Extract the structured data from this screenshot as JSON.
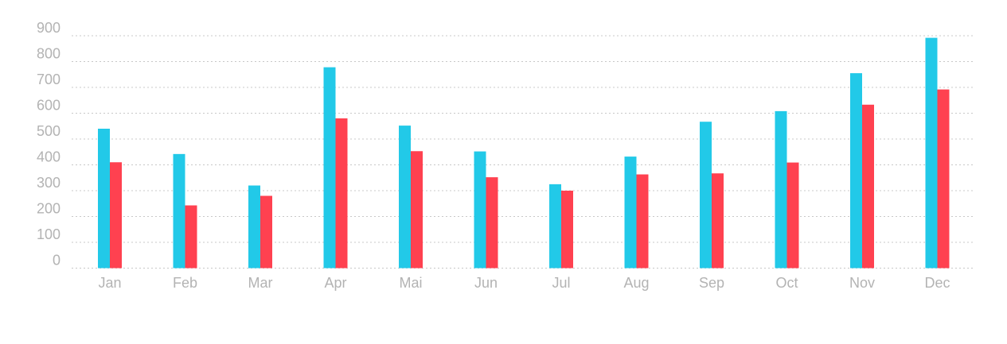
{
  "chart_data": {
    "type": "bar",
    "title": "",
    "xlabel": "",
    "ylabel": "",
    "categories": [
      "Jan",
      "Feb",
      "Mar",
      "Apr",
      "Mai",
      "Jun",
      "Jul",
      "Aug",
      "Sep",
      "Oct",
      "Nov",
      "Dec"
    ],
    "series": [
      {
        "color": "#22c9e8",
        "values": [
          540,
          442,
          320,
          778,
          552,
          452,
          325,
          432,
          567,
          608,
          755,
          892
        ]
      },
      {
        "color": "#ff4150",
        "values": [
          410,
          243,
          280,
          580,
          453,
          352,
          300,
          363,
          367,
          409,
          633,
          692
        ]
      }
    ],
    "ylim": [
      0,
      900
    ],
    "yticks": [
      "0",
      "100",
      "200",
      "300",
      "400",
      "500",
      "600",
      "700",
      "800",
      "900"
    ],
    "grid": true,
    "legend": "none"
  }
}
